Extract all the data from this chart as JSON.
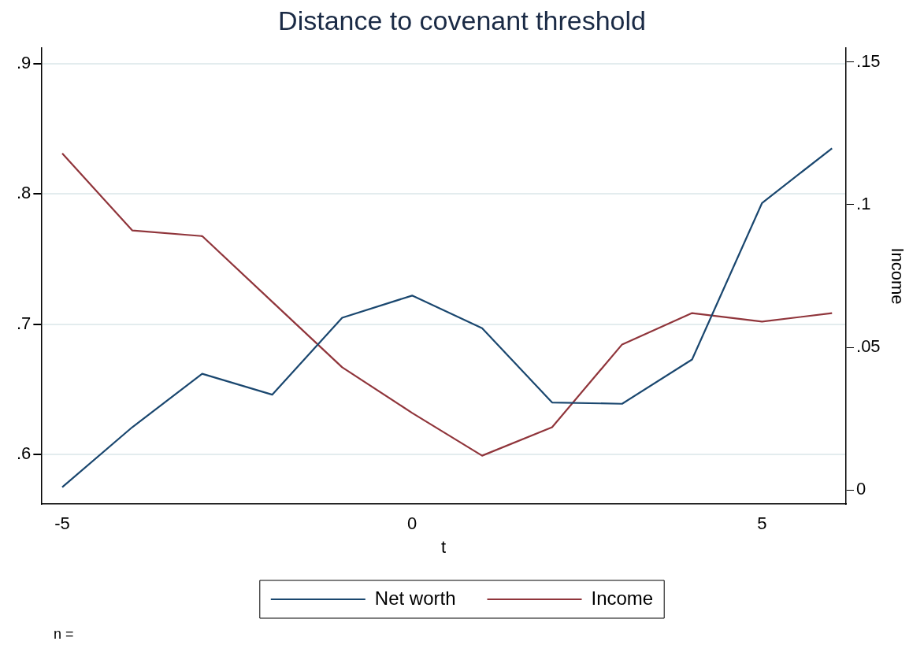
{
  "chart_data": {
    "type": "line",
    "title": "Distance to covenant threshold",
    "xlabel": "t",
    "y2label": "Income",
    "x": [
      -5,
      -4,
      -3,
      -2,
      -1,
      0,
      1,
      2,
      3,
      4,
      5,
      6
    ],
    "series": [
      {
        "name": "Net worth",
        "color": "#1a476f",
        "values": [
          0.575,
          0.621,
          0.662,
          0.646,
          0.705,
          0.722,
          0.697,
          0.64,
          0.639,
          0.673,
          0.793,
          0.835
        ]
      },
      {
        "name": "Income",
        "color": "#90353b",
        "axis": "y2",
        "values": [
          0.118,
          0.091,
          0.089,
          0.066,
          0.043,
          0.027,
          0.012,
          0.022,
          0.051,
          0.062,
          0.059,
          0.062
        ]
      }
    ],
    "xlim": [
      -5.3,
      6.2
    ],
    "xticks": [
      -5,
      0,
      5
    ],
    "ylim": [
      0.562,
      0.912
    ],
    "yticks": [
      {
        "value": 0.6,
        "label": ".6"
      },
      {
        "value": 0.7,
        "label": ".7"
      },
      {
        "value": 0.8,
        "label": ".8"
      },
      {
        "value": 0.9,
        "label": ".9"
      }
    ],
    "y2lim": [
      -0.005,
      0.155
    ],
    "y2ticks": [
      0,
      {
        "value": 0.05,
        "label": ".05"
      },
      {
        "value": 0.1,
        "label": ".1"
      },
      {
        "value": 0.15,
        "label": ".15"
      }
    ],
    "grid": "y",
    "legend": "bottom",
    "marker": "none",
    "line_style": "solid",
    "annotations": [
      "n ="
    ]
  }
}
